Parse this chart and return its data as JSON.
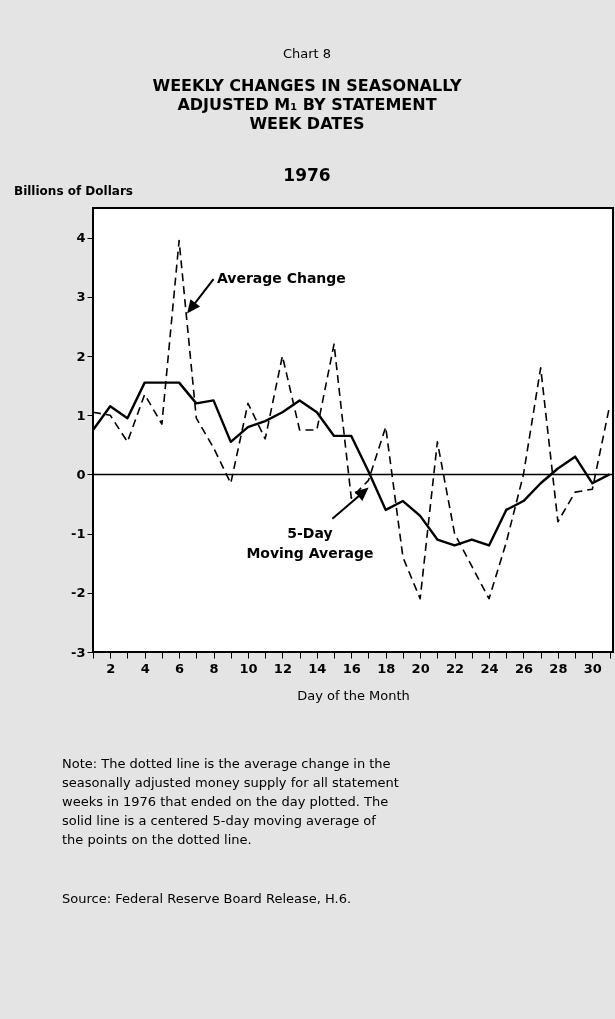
{
  "chart_data": {
    "type": "line",
    "title": "WEEKLY CHANGES IN SEASONALLY ADJUSTED M₁ BY STATEMENT WEEK DATES",
    "subtitle": "1976",
    "ylabel": "Billions of Dollars",
    "xlabel": "Day of the Month",
    "annotations": [
      "Chart 8",
      "Note: The dotted line is the average change in the seasonally adjusted money supply for all statement weeks in 1976 that ended on the day plotted. The solid line is a centered 5-day moving average of the points on the dotted line.",
      "Source: Federal Reserve Board Release, H.6."
    ],
    "x": [
      1,
      2,
      3,
      4,
      5,
      6,
      7,
      8,
      9,
      10,
      11,
      12,
      13,
      14,
      15,
      16,
      17,
      18,
      19,
      20,
      21,
      22,
      23,
      24,
      25,
      26,
      27,
      28,
      29,
      30,
      31
    ],
    "series": [
      {
        "name": "Average Change",
        "color": "#000000",
        "line_style": "dashed",
        "values": [
          1.05,
          1.0,
          0.55,
          1.35,
          0.85,
          3.95,
          0.95,
          0.45,
          -0.15,
          1.2,
          0.6,
          2.0,
          0.75,
          0.75,
          2.2,
          -0.4,
          -0.1,
          0.8,
          -1.4,
          -2.1,
          0.55,
          -1.0,
          -1.55,
          -2.1,
          -1.15,
          0.0,
          1.8,
          -0.8,
          -0.3,
          -0.25,
          1.15
        ]
      },
      {
        "name": "5-Day Moving Average",
        "color": "#000000",
        "line_style": "solid",
        "values": [
          0.75,
          1.15,
          0.95,
          1.55,
          1.55,
          1.55,
          1.2,
          1.25,
          0.55,
          0.8,
          0.9,
          1.05,
          1.25,
          1.05,
          0.65,
          0.65,
          0.05,
          -0.6,
          -0.45,
          -0.7,
          -1.1,
          -1.2,
          -1.1,
          -1.2,
          -0.6,
          -0.45,
          -0.15,
          0.1,
          0.3,
          -0.15,
          0.0
        ]
      }
    ],
    "xlim": [
      1,
      31.2
    ],
    "xticks": [
      {
        "value": 1,
        "label": null
      },
      2,
      {
        "value": 3,
        "label": null
      },
      4,
      {
        "value": 5,
        "label": null
      },
      6,
      {
        "value": 7,
        "label": null
      },
      8,
      {
        "value": 9,
        "label": null
      },
      10,
      {
        "value": 11,
        "label": null
      },
      12,
      {
        "value": 13,
        "label": null
      },
      14,
      {
        "value": 15,
        "label": null
      },
      16,
      {
        "value": 17,
        "label": null
      },
      18,
      {
        "value": 19,
        "label": null
      },
      20,
      {
        "value": 21,
        "label": null
      },
      22,
      {
        "value": 23,
        "label": null
      },
      24,
      {
        "value": 25,
        "label": null
      },
      26,
      {
        "value": 27,
        "label": null
      },
      28,
      {
        "value": 29,
        "label": null
      },
      30,
      {
        "value": 31,
        "label": null
      }
    ],
    "ylim": [
      -3,
      4.5
    ],
    "yticks": [
      -3,
      -2,
      -1,
      0,
      1,
      2,
      3,
      4
    ],
    "ref_lines": [
      {
        "axis": "y",
        "value": 0
      }
    ],
    "grid": false
  }
}
